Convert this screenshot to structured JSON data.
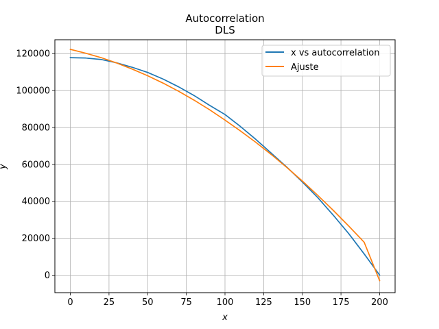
{
  "chart_data": {
    "type": "line",
    "title": "Autocorrelation",
    "subtitle": "DLS",
    "xlabel": "x",
    "ylabel": "y",
    "xlim": [
      -10,
      210
    ],
    "ylim": [
      -9500,
      127500
    ],
    "xticks": [
      0,
      25,
      50,
      75,
      100,
      125,
      150,
      175,
      200
    ],
    "xtick_labels": [
      "0",
      "25",
      "50",
      "75",
      "100",
      "125",
      "150",
      "175",
      "200"
    ],
    "yticks": [
      0,
      20000,
      40000,
      60000,
      80000,
      100000,
      120000
    ],
    "ytick_labels": [
      "0",
      "20000",
      "40000",
      "60000",
      "80000",
      "100000",
      "120000"
    ],
    "grid": true,
    "legend_position": "top-right",
    "series": [
      {
        "name": "x vs autocorrelation",
        "color": "#1f77b4",
        "x": [
          0,
          10,
          20,
          30,
          40,
          50,
          60,
          70,
          80,
          90,
          100,
          110,
          120,
          130,
          140,
          150,
          160,
          170,
          180,
          190,
          200
        ],
        "y": [
          117800,
          117600,
          116800,
          115000,
          112600,
          109800,
          106200,
          102000,
          97300,
          92000,
          87000,
          80500,
          73500,
          66000,
          58500,
          50500,
          42000,
          32500,
          22500,
          11500,
          0
        ]
      },
      {
        "name": "Ajuste",
        "color": "#ff7f0e",
        "x": [
          0,
          10,
          20,
          30,
          40,
          50,
          60,
          70,
          80,
          90,
          100,
          110,
          120,
          130,
          140,
          150,
          160,
          170,
          180,
          190,
          200
        ],
        "y": [
          122300,
          120200,
          117800,
          114900,
          111600,
          108000,
          104000,
          99600,
          94800,
          89600,
          84000,
          78100,
          71900,
          65300,
          58300,
          51000,
          43200,
          35100,
          26600,
          17800,
          -3000
        ]
      }
    ]
  }
}
